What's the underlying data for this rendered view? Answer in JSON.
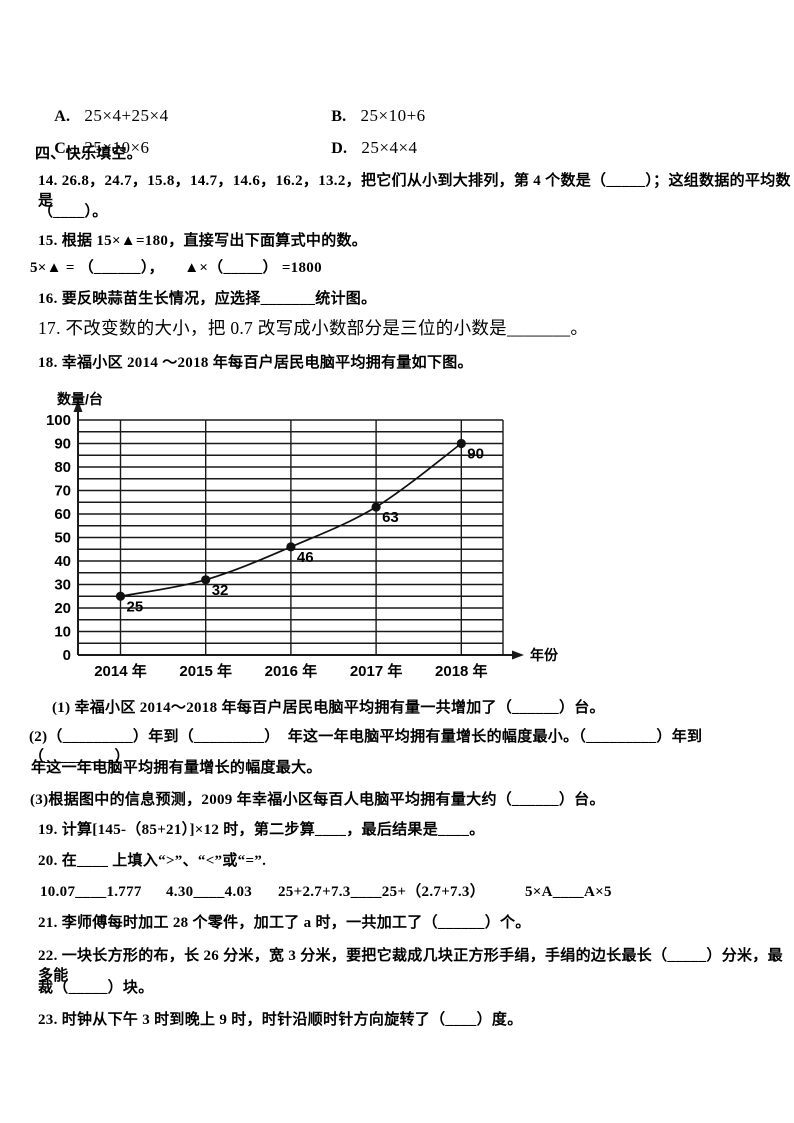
{
  "page": {
    "background": "#ffffff",
    "text_color": "#000000"
  },
  "options_row": {
    "a_label": "A.",
    "a_formula": "25×4+25×4",
    "b_label": "B.",
    "b_formula": "25×10+6",
    "c_label": "C.",
    "c_formula": "25×10×6",
    "d_label": "D.",
    "d_formula": "25×4×4"
  },
  "section": {
    "heading": "四、快乐填空。"
  },
  "lines": {
    "q14_1": "14. 26.8，24.7，15.8，14.7，14.6，16.2，13.2，把它们从小到大排列，第 4 个数是（_____）；这组数据的平均数是",
    "q14_2": "（____）。",
    "q15_1": "15. 根据 15×▲=180，直接写出下面算式中的数。",
    "q15_2": "5×▲ = （______），     ▲×（_____） =1800",
    "q16": "16. 要反映蒜苗生长情况，应选择_______统计图。",
    "q17": "17. 不改变数的大小，把 0.7 改写成小数部分是三位的小数是_______。",
    "q18": "18. 幸福小区 2014 ～2018 年每百户居民电脑平均拥有量如下图。",
    "q18_sub1": "(1) 幸福小区 2014～2018 年每百户居民电脑平均拥有量一共增加了（______）台。",
    "q18_sub2a": "(2)（_________）年到（_________）  年这一年电脑平均拥有量增长的幅度最小。（_________）年到（_________）",
    "q18_sub2b": "年这一年电脑平均拥有量增长的幅度最大。",
    "q18_sub3": "(3)根据图中的信息预测，2009 年幸福小区每百人电脑平均拥有量大约（______）台。",
    "q19": "19. 计算[145-（85+21）]×12 时，第二步算____，最后结果是____。",
    "q20": "20. 在____ 上填入“>”、“<”或“=”.",
    "q21": "21. 李师傅每时加工 28 个零件，加工了 a 时，一共加工了（______）个。",
    "q22_1": "22. 一块长方形的布，长 26 分米，宽 3 分米，要把它裁成几块正方形手绢，手绢的边长最长（_____）分米，最多能",
    "q22_2": "裁（_____）块。",
    "q23": "23. 时钟从下午 3 时到晚上 9 时，时针沿顺时针方向旋转了（____）度。"
  },
  "q20_values": [
    "10.07____1.777",
    "4.30____4.03",
    "25+2.7+7.3____25+（2.7+7.3）",
    "5×A____A×5"
  ],
  "chart_data": {
    "type": "line",
    "title": "",
    "ylabel": "数量/台",
    "xlabel": "年份",
    "categories": [
      "2014 年",
      "2015 年",
      "2016 年",
      "2017 年",
      "2018 年"
    ],
    "values": [
      25,
      32,
      46,
      63,
      90
    ],
    "point_labels": [
      "25",
      "32",
      "46",
      "63",
      "90"
    ],
    "ylim": [
      0,
      100
    ],
    "ytick_step": 10,
    "grid_minor_step": 5,
    "grid": true,
    "legend": false,
    "line_color": "#111111",
    "point_color": "#111111",
    "grid_color": "#1a1a1a"
  }
}
